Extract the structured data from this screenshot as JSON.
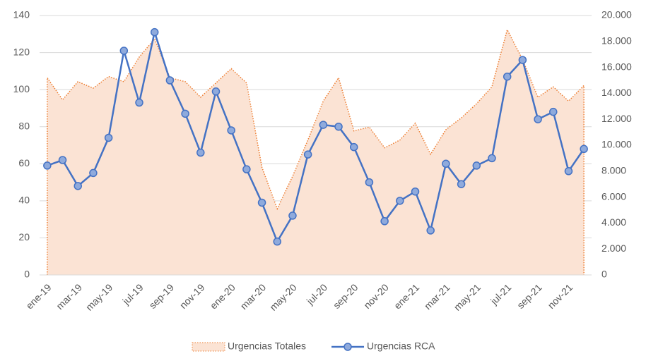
{
  "chart_data": {
    "type": "line",
    "categories": [
      "ene-19",
      null,
      "mar-19",
      null,
      "may-19",
      null,
      "jul-19",
      null,
      "sep-19",
      null,
      "nov-19",
      null,
      "ene-20",
      null,
      "mar-20",
      null,
      "may-20",
      null,
      "jul-20",
      null,
      "sep-20",
      null,
      "nov-20",
      null,
      "ene-21",
      null,
      "mar-21",
      null,
      "may-21",
      null,
      "jul-21",
      null,
      "sep-21",
      null,
      "nov-21",
      null
    ],
    "series": [
      {
        "name": "Urgencias Totales",
        "type": "area",
        "axis": "y2",
        "color": "#ed7d31",
        "fill": "#fbe3d4",
        "values": [
          15200,
          13500,
          14900,
          14400,
          15300,
          14900,
          16800,
          18200,
          15200,
          14900,
          13700,
          14800,
          15900,
          14800,
          8300,
          5100,
          7600,
          10400,
          13400,
          15200,
          11100,
          11400,
          9800,
          10400,
          11700,
          9300,
          11200,
          12100,
          13200,
          14500,
          18900,
          16600,
          13700,
          14500,
          13400,
          14600
        ]
      },
      {
        "name": "Urgencias RCA",
        "type": "line",
        "color": "#4472c4",
        "marker_fill": "#8faadc",
        "values": [
          59,
          62,
          48,
          55,
          74,
          121,
          93,
          131,
          105,
          87,
          66,
          99,
          78,
          57,
          39,
          18,
          32,
          65,
          81,
          80,
          69,
          50,
          29,
          40,
          45,
          24,
          60,
          49,
          59,
          63,
          107,
          116,
          84,
          88,
          56,
          68
        ]
      }
    ],
    "ylim": [
      0,
      140
    ],
    "yticks": [
      0,
      20,
      40,
      60,
      80,
      100,
      120,
      140
    ],
    "y2lim": [
      0,
      20000
    ],
    "y2ticks": [
      0,
      {
        "value": 2000,
        "label": "2.000"
      },
      {
        "value": 4000,
        "label": "4.000"
      },
      {
        "value": 6000,
        "label": "6.000"
      },
      {
        "value": 8000,
        "label": "8.000"
      },
      {
        "value": 10000,
        "label": "10.000"
      },
      {
        "value": 12000,
        "label": "12.000"
      },
      {
        "value": 14000,
        "label": "14.000"
      },
      {
        "value": 16000,
        "label": "16.000"
      },
      {
        "value": 18000,
        "label": "18.000"
      },
      {
        "value": 20000,
        "label": "20.000"
      }
    ],
    "grid": true,
    "legend": "bottom"
  }
}
